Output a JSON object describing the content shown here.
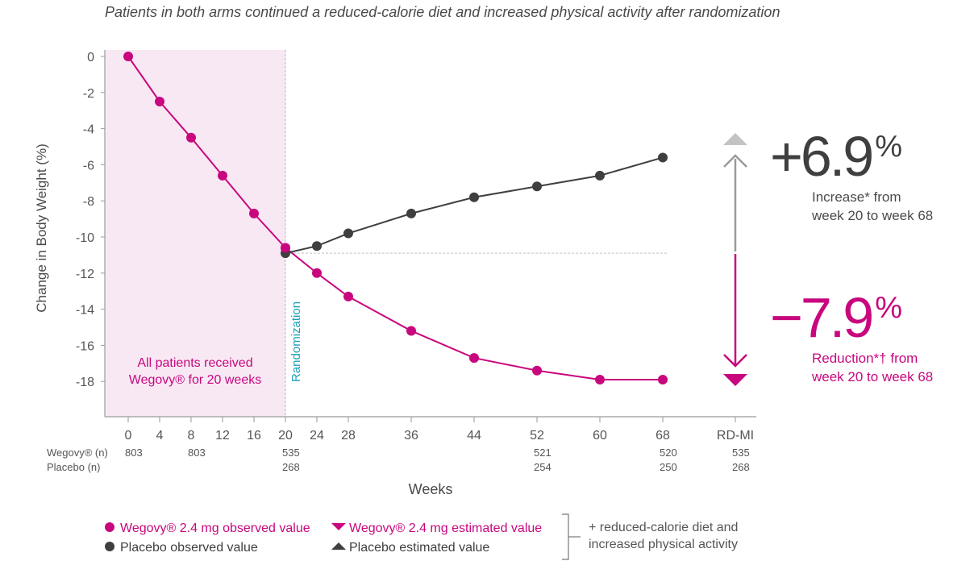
{
  "subtitle": "Patients in both arms continued a reduced-calorie diet and increased physical activity after randomization",
  "colors": {
    "wegovy": "#c8077e",
    "placebo": "#3f3f3f",
    "shade": "#f8e8f4",
    "randomization": "#19a0b8",
    "placebo_estimate_arrow": "#c3c3c3",
    "axis": "#9a9a9a"
  },
  "chart_data": {
    "type": "line",
    "ylabel": "Change in Body Weight (%)",
    "xlabel": "Weeks",
    "ylim": [
      -20,
      0
    ],
    "xlim": [
      -6,
      78
    ],
    "yticks": [
      0,
      -2,
      -4,
      -6,
      -8,
      -10,
      -12,
      -14,
      -16,
      -18
    ],
    "xticks": [
      0,
      4,
      8,
      12,
      16,
      20,
      24,
      28,
      36,
      44,
      52,
      60,
      68
    ],
    "x_extra_tick_label": "RD-MI",
    "grid": false,
    "shaded_region": {
      "x_from": -3,
      "x_to": 20,
      "label_line1": "All patients received",
      "label_line2": "Wegovy® for 20 weeks"
    },
    "vertical_marker": {
      "x": 20,
      "label": "Randomization"
    },
    "baseline_reference": -10.9,
    "series": [
      {
        "name": "Wegovy® 2.4 mg observed value",
        "x": [
          0,
          4,
          8,
          12,
          16,
          20,
          24,
          28,
          36,
          44,
          52,
          60,
          68
        ],
        "values": [
          0,
          -2.5,
          -4.5,
          -6.6,
          -8.7,
          -10.6,
          -12.0,
          -13.3,
          -15.2,
          -16.7,
          -17.4,
          -17.9,
          -17.9
        ]
      },
      {
        "name": "Placebo observed value",
        "x": [
          20,
          24,
          28,
          36,
          44,
          52,
          60,
          68
        ],
        "values": [
          -10.9,
          -10.5,
          -9.8,
          -8.7,
          -7.8,
          -7.2,
          -6.6,
          -5.6
        ]
      }
    ],
    "estimated_markers": [
      {
        "series": "Placebo estimated value",
        "x": "RD-MI",
        "value": -4.6,
        "shape": "triangle-up"
      },
      {
        "series": "Wegovy® 2.4 mg estimated value",
        "x": "RD-MI",
        "value": -17.9,
        "shape": "triangle-down"
      }
    ],
    "n_table": {
      "rows": [
        {
          "label": "Wegovy® (n)",
          "cells": [
            {
              "x": 0,
              "v": "803"
            },
            {
              "x": 8,
              "v": "803"
            },
            {
              "x": 20,
              "v": "535"
            },
            {
              "x": 52,
              "v": "521"
            },
            {
              "x": 68,
              "v": "520"
            },
            {
              "x": "RD-MI",
              "v": "535"
            }
          ]
        },
        {
          "label": "Placebo (n)",
          "cells": [
            {
              "x": 20,
              "v": "268"
            },
            {
              "x": 52,
              "v": "254"
            },
            {
              "x": 68,
              "v": "250"
            },
            {
              "x": "RD-MI",
              "v": "268"
            }
          ]
        }
      ]
    },
    "annotations": {
      "increase": {
        "value": "+6.9",
        "unit": "%",
        "line1": "Increase* from",
        "line2": "week 20 to week 68"
      },
      "reduction": {
        "value": "−7.9",
        "unit": "%",
        "line1": "Reduction*† from",
        "line2": "week 20 to week 68"
      }
    }
  },
  "legend": {
    "items": [
      {
        "label": "Wegovy® 2.4 mg observed value",
        "marker": "circle",
        "color_key": "wegovy"
      },
      {
        "label": "Wegovy® 2.4 mg estimated value",
        "marker": "triangle-down",
        "color_key": "wegovy"
      },
      {
        "label": "Placebo observed value",
        "marker": "circle",
        "color_key": "placebo"
      },
      {
        "label": "Placebo estimated value",
        "marker": "triangle-up",
        "color_key": "placebo"
      }
    ],
    "note_line1": "+ reduced-calorie diet and",
    "note_line2": "increased physical activity"
  }
}
